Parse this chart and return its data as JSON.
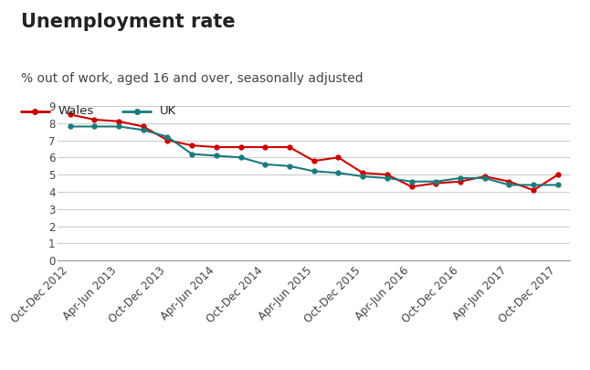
{
  "title": "Unemployment rate",
  "subtitle": "% out of work, aged 16 and over, seasonally adjusted",
  "x_labels": [
    "Oct-Dec 2012",
    "Apr-Jun 2013",
    "Oct-Dec 2013",
    "Apr-Jun 2014",
    "Oct-Dec 2014",
    "Apr-Jun 2015",
    "Oct-Dec 2015",
    "Apr-Jun 2016",
    "Oct-Dec 2016",
    "Apr-Jun 2017",
    "Oct-Dec 2017"
  ],
  "wales": [
    8.5,
    8.2,
    8.1,
    7.8,
    7.0,
    6.7,
    6.6,
    6.6,
    6.6,
    6.6,
    5.8,
    6.0,
    5.1,
    5.0,
    4.3,
    4.5,
    4.6,
    4.9,
    4.6,
    4.1,
    5.0
  ],
  "uk": [
    7.8,
    7.8,
    7.8,
    7.6,
    7.2,
    6.2,
    6.1,
    6.0,
    5.6,
    5.5,
    5.2,
    5.1,
    4.9,
    4.8,
    4.6,
    4.6,
    4.8,
    4.8,
    4.4,
    4.4,
    4.4
  ],
  "wales_color": "#cc0000",
  "uk_color": "#1a7a7a",
  "background_color": "#ffffff",
  "grid_color": "#cccccc",
  "ylim": [
    0,
    9
  ],
  "yticks": [
    0,
    1,
    2,
    3,
    4,
    5,
    6,
    7,
    8,
    9
  ],
  "legend_labels": [
    "Wales",
    "UK"
  ],
  "title_fontsize": 15,
  "subtitle_fontsize": 10,
  "tick_fontsize": 8.5,
  "legend_fontsize": 9.5,
  "n_points": 21,
  "label_step": 2
}
